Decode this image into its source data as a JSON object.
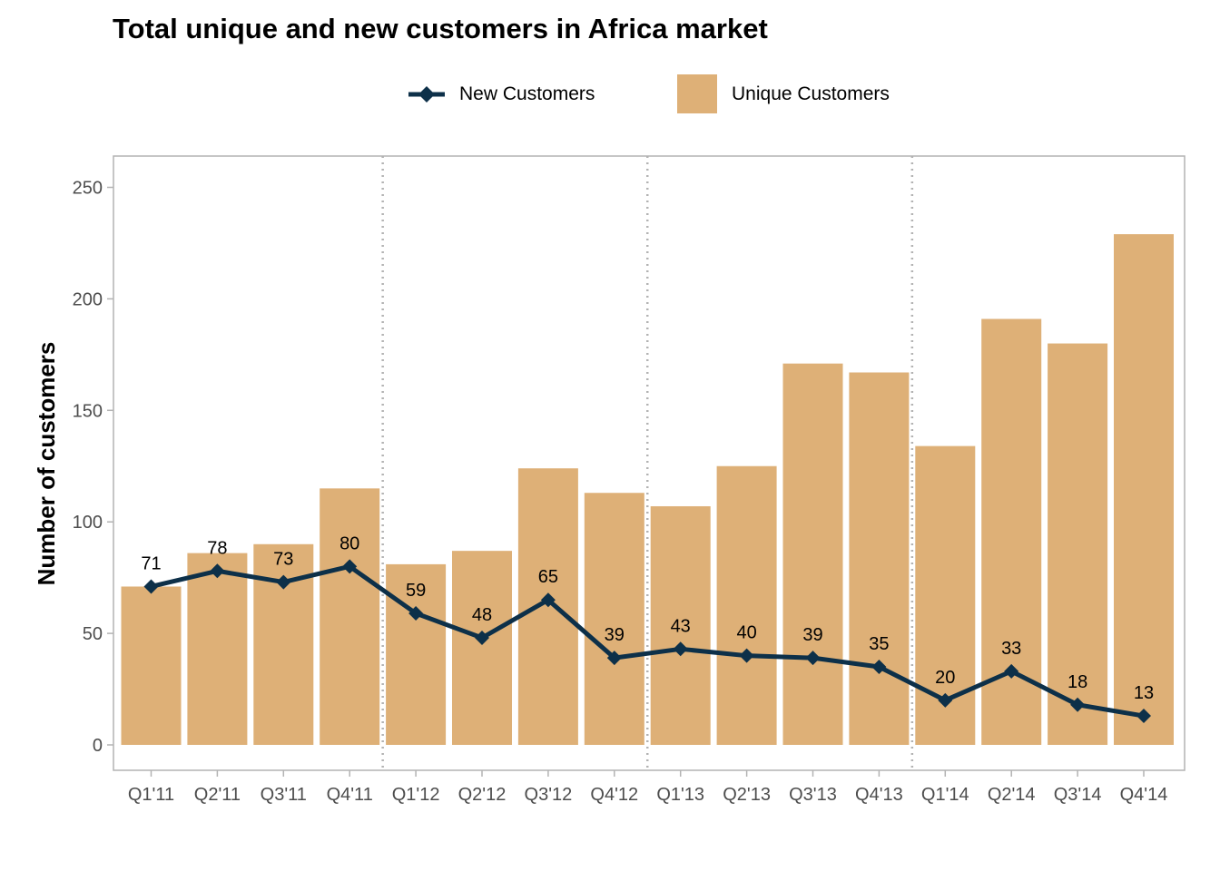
{
  "chart_data": {
    "type": "bar",
    "title": "Total unique and new customers in Africa market",
    "xlabel": "",
    "ylabel": "Number of customers",
    "ylim": [
      -11,
      265
    ],
    "yticks": [
      0,
      50,
      100,
      150,
      200,
      250
    ],
    "grid": false,
    "legend_position": "top",
    "categories": [
      "Q1'11",
      "Q2'11",
      "Q3'11",
      "Q4'11",
      "Q1'12",
      "Q2'12",
      "Q3'12",
      "Q4'12",
      "Q1'13",
      "Q2'13",
      "Q3'13",
      "Q4'13",
      "Q1'14",
      "Q2'14",
      "Q3'14",
      "Q4'14"
    ],
    "year_separators_after": [
      "Q4'11",
      "Q4'12",
      "Q4'13"
    ],
    "series": [
      {
        "name": "Unique Customers",
        "type": "bar",
        "color": "#DEB077",
        "values": [
          71,
          86,
          90,
          115,
          81,
          87,
          124,
          113,
          107,
          125,
          171,
          167,
          134,
          191,
          180,
          229
        ]
      },
      {
        "name": "New Customers",
        "type": "line",
        "marker": "diamond",
        "color": "#0D3049",
        "values": [
          71,
          78,
          73,
          80,
          59,
          48,
          65,
          39,
          43,
          40,
          39,
          35,
          20,
          33,
          18,
          13
        ],
        "data_labels": [
          "71",
          "78",
          "73",
          "80",
          "59",
          "48",
          "65",
          "39",
          "43",
          "40",
          "39",
          "35",
          "20",
          "33",
          "18",
          "13"
        ]
      }
    ]
  },
  "legend": {
    "items": [
      {
        "label": "New Customers",
        "swatch": "line-diamond",
        "color": "#0D3049"
      },
      {
        "label": "Unique Customers",
        "swatch": "square",
        "color": "#DEB077"
      }
    ]
  },
  "colors": {
    "panel_border": "#B3B3B3",
    "axis_text": "#4D4D4D",
    "separator": "#B3B3B3"
  }
}
